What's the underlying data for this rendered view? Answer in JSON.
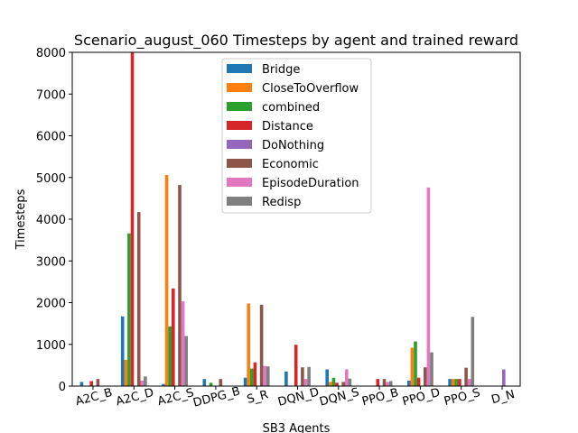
{
  "chart_data": {
    "type": "bar",
    "title": "Scenario_august_060 Timesteps by agent and trained reward",
    "xlabel": "SB3 Agents",
    "ylabel": "Timesteps",
    "ylim": [
      0,
      8000
    ],
    "yticks": [
      0,
      1000,
      2000,
      3000,
      4000,
      5000,
      6000,
      7000,
      8000
    ],
    "categories": [
      "A2C_B",
      "A2C_D",
      "A2C_S",
      "DDPG_B",
      "S_R",
      "DQN_D",
      "DQN_S",
      "PPO_B",
      "PPO_D",
      "PPO_S",
      "D_N"
    ],
    "legend_position": "upper center",
    "grid": false,
    "series": [
      {
        "name": "Bridge",
        "color": "#1f77b4",
        "values": [
          100,
          1670,
          50,
          170,
          200,
          350,
          400,
          0,
          130,
          170,
          0
        ]
      },
      {
        "name": "CloseToOverflow",
        "color": "#ff7f0e",
        "values": [
          0,
          630,
          5060,
          0,
          1980,
          0,
          100,
          0,
          920,
          170,
          0
        ]
      },
      {
        "name": "combined",
        "color": "#2ca02c",
        "values": [
          0,
          3660,
          1430,
          80,
          420,
          0,
          200,
          0,
          1070,
          170,
          0
        ]
      },
      {
        "name": "Distance",
        "color": "#d62728",
        "values": [
          120,
          8000,
          2340,
          0,
          570,
          990,
          80,
          170,
          200,
          170,
          0
        ]
      },
      {
        "name": "DoNothing",
        "color": "#9467bd",
        "values": [
          0,
          0,
          0,
          0,
          0,
          0,
          0,
          0,
          0,
          0,
          400
        ]
      },
      {
        "name": "Economic",
        "color": "#8c564b",
        "values": [
          170,
          4170,
          4820,
          170,
          1950,
          450,
          100,
          170,
          450,
          440,
          0
        ]
      },
      {
        "name": "EpisodeDuration",
        "color": "#e377c2",
        "values": [
          0,
          130,
          2030,
          0,
          480,
          170,
          400,
          100,
          4760,
          170,
          0
        ]
      },
      {
        "name": "Redisp",
        "color": "#7f7f7f",
        "values": [
          0,
          230,
          1200,
          0,
          470,
          460,
          180,
          120,
          810,
          1660,
          0
        ]
      }
    ]
  }
}
